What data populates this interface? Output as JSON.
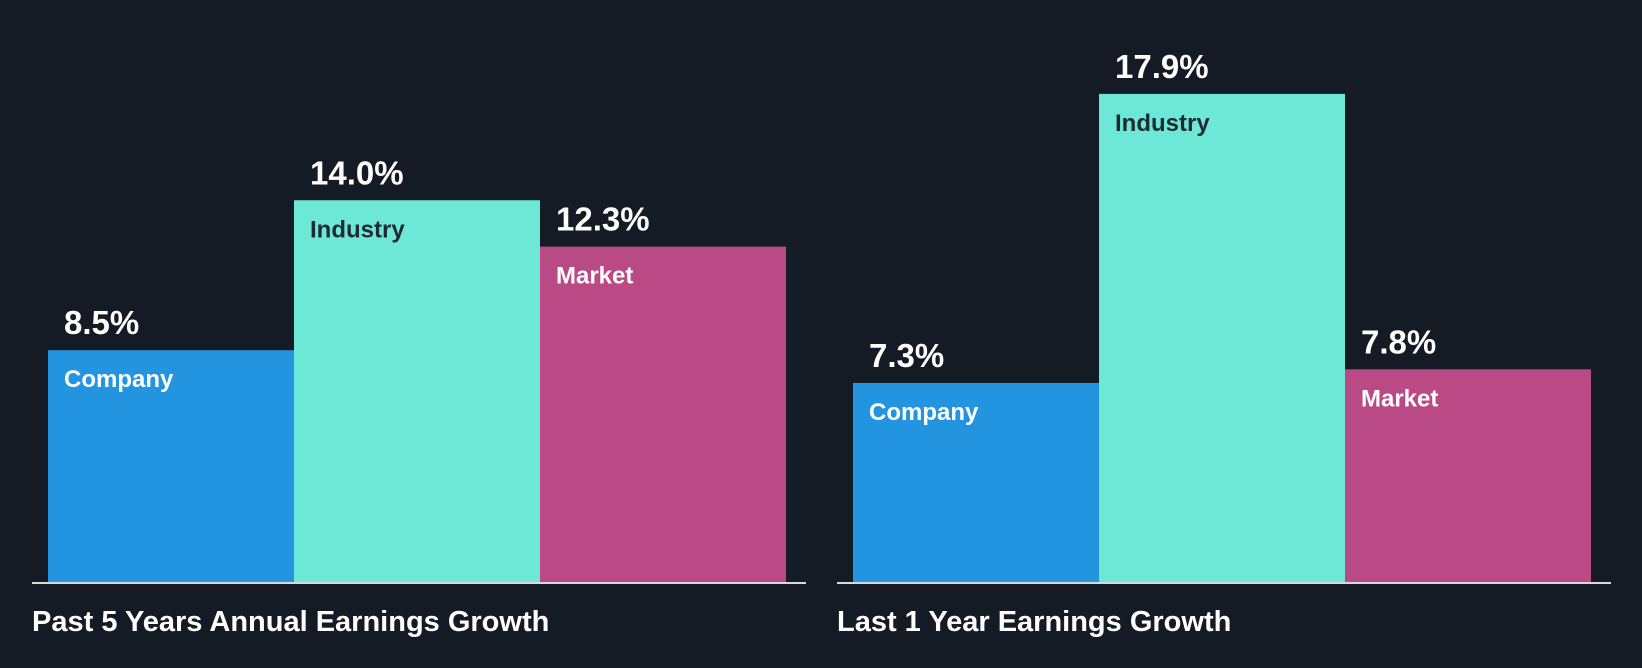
{
  "colors": {
    "background": "#151b24",
    "company": "#2394e0",
    "industry": "#6ee8d6",
    "market": "#b94a85",
    "axis": "#d9d9d9",
    "label_on_dark_bar": "#ffffff",
    "label_on_light_bar": "#1e2a36"
  },
  "chart_data": [
    {
      "type": "bar",
      "title": "Past 5 Years Annual Earnings Growth",
      "categories": [
        "Company",
        "Industry",
        "Market"
      ],
      "values": [
        8.5,
        14.0,
        12.3
      ],
      "value_labels": [
        "8.5%",
        "14.0%",
        "12.3%"
      ],
      "colors": [
        "#2394e0",
        "#6ee8d6",
        "#b94a85"
      ],
      "ylim": [
        0,
        18.3
      ],
      "grid": false,
      "legend": "none"
    },
    {
      "type": "bar",
      "title": "Last 1 Year Earnings Growth",
      "categories": [
        "Company",
        "Industry",
        "Market"
      ],
      "values": [
        7.3,
        17.9,
        7.8
      ],
      "value_labels": [
        "7.3%",
        "17.9%",
        "7.8%"
      ],
      "colors": [
        "#2394e0",
        "#6ee8d6",
        "#b94a85"
      ],
      "ylim": [
        0,
        18.3
      ],
      "grid": false,
      "legend": "none"
    }
  ]
}
